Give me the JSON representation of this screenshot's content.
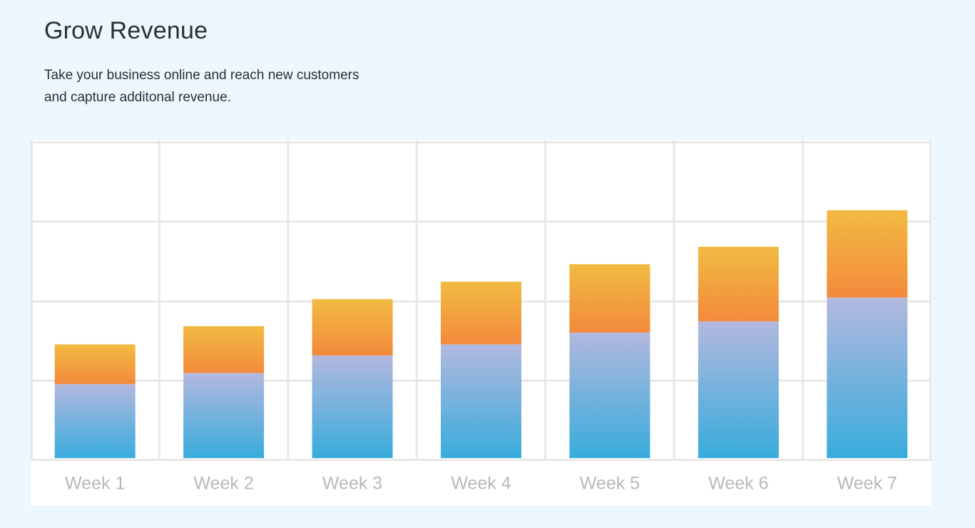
{
  "header": {
    "title": "Grow Revenue",
    "subtitle_line1": "Take your business online and reach new customers",
    "subtitle_line2": "and capture additonal revenue."
  },
  "colors": {
    "base_top": "#b3b8de",
    "base_bottom": "#38acdc",
    "growth_top": "#f2bb42",
    "growth_bottom": "#f38a3c",
    "grid": "#e8e8e8",
    "background": "#eef7fd"
  },
  "chart_data": {
    "type": "bar",
    "stacked": true,
    "categories": [
      "Week 1",
      "Week 2",
      "Week 3",
      "Week 4",
      "Week 5",
      "Week 6",
      "Week 7"
    ],
    "series": [
      {
        "values": [
          0.95,
          1.09,
          1.31,
          1.45,
          1.6,
          1.74,
          2.04
        ]
      },
      {
        "values": [
          0.5,
          0.59,
          0.71,
          0.79,
          0.86,
          0.94,
          1.1
        ]
      }
    ],
    "ylim": [
      0,
      4
    ],
    "grid": true,
    "legend": "none"
  }
}
